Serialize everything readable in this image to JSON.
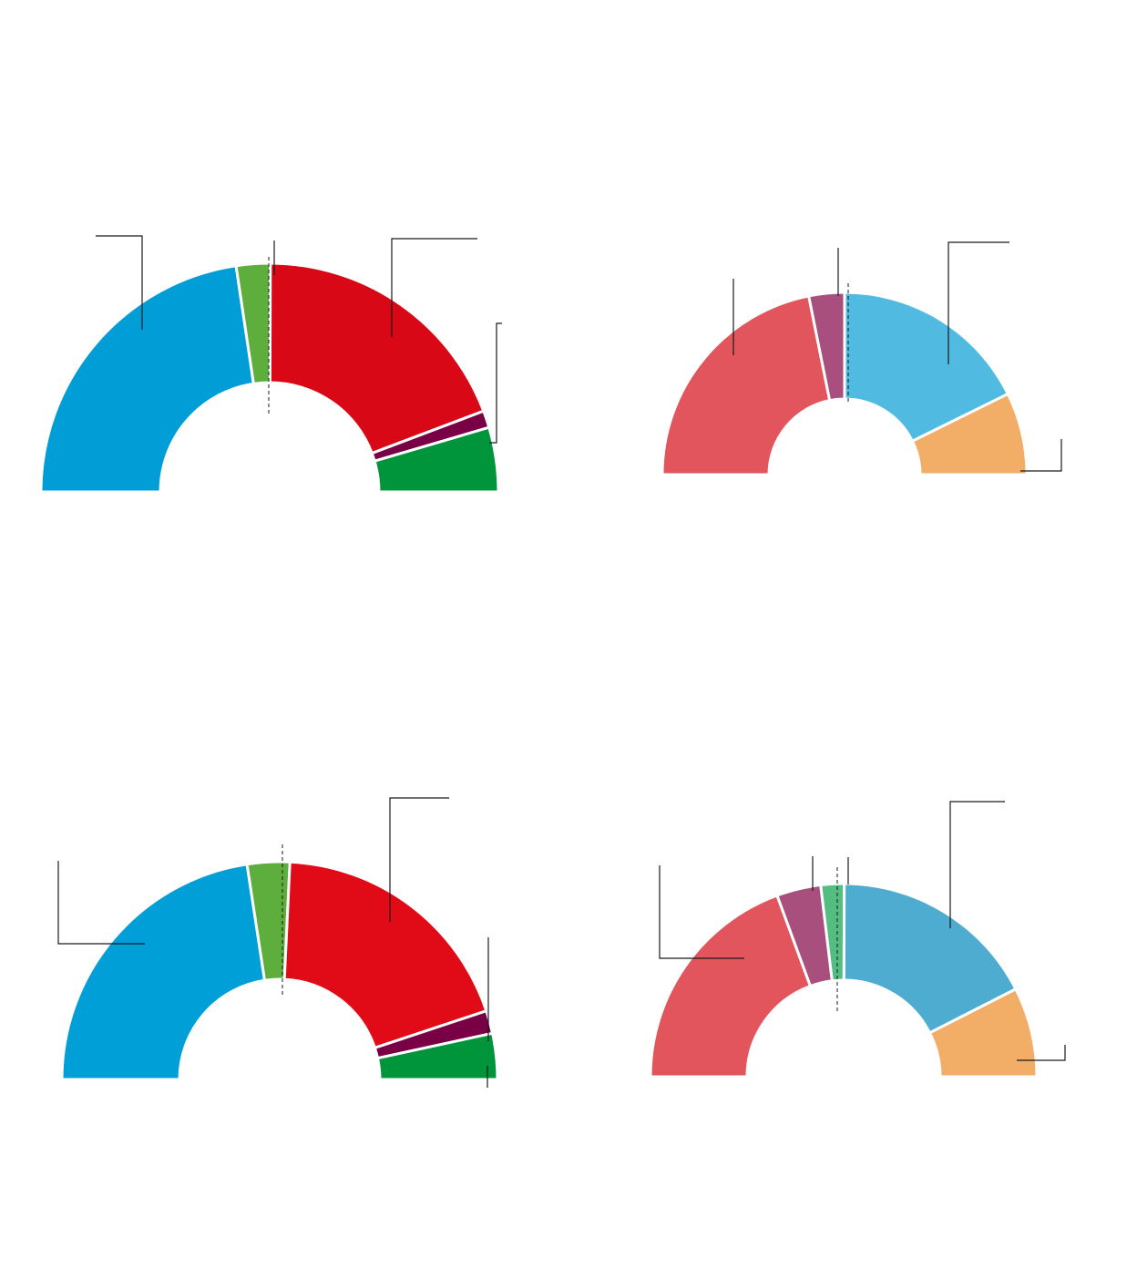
{
  "chart_data": [
    {
      "type": "donut",
      "shape": "half-donut (parliament seats)",
      "majority_marker": true,
      "slices": [
        {
          "color": "#009dd6",
          "value": 45.3
        },
        {
          "color": "#5eae3e",
          "value": 4.8
        },
        {
          "color": "#d90816",
          "value": 38.4
        },
        {
          "color": "#7a0045",
          "value": 2.4
        },
        {
          "color": "#00943b",
          "value": 9.1
        }
      ]
    },
    {
      "type": "donut",
      "shape": "half-donut (parliament seats)",
      "majority_marker": true,
      "slices": [
        {
          "color": "#e2555c",
          "value": 43.7
        },
        {
          "color": "#a94f7d",
          "value": 6.3
        },
        {
          "color": "#50bae1",
          "value": 35.4
        },
        {
          "color": "#f2ae66",
          "value": 14.6
        }
      ]
    },
    {
      "type": "donut",
      "shape": "half-donut (parliament seats)",
      "majority_marker": true,
      "slices": [
        {
          "color": "#009fd7",
          "value": 45.2
        },
        {
          "color": "#5eae3e",
          "value": 6.3
        },
        {
          "color": "#e10a17",
          "value": 38.3
        },
        {
          "color": "#7a0045",
          "value": 3.4
        },
        {
          "color": "#00943b",
          "value": 6.8
        }
      ]
    },
    {
      "type": "donut",
      "shape": "half-donut (parliament seats)",
      "majority_marker": true,
      "slices": [
        {
          "color": "#e2555c",
          "value": 38.8
        },
        {
          "color": "#a94f7d",
          "value": 7.4
        },
        {
          "color": "#53bd82",
          "value": 3.9
        },
        {
          "color": "#4daccf",
          "value": 34.9
        },
        {
          "color": "#f2ae66",
          "value": 15.0
        }
      ]
    }
  ]
}
